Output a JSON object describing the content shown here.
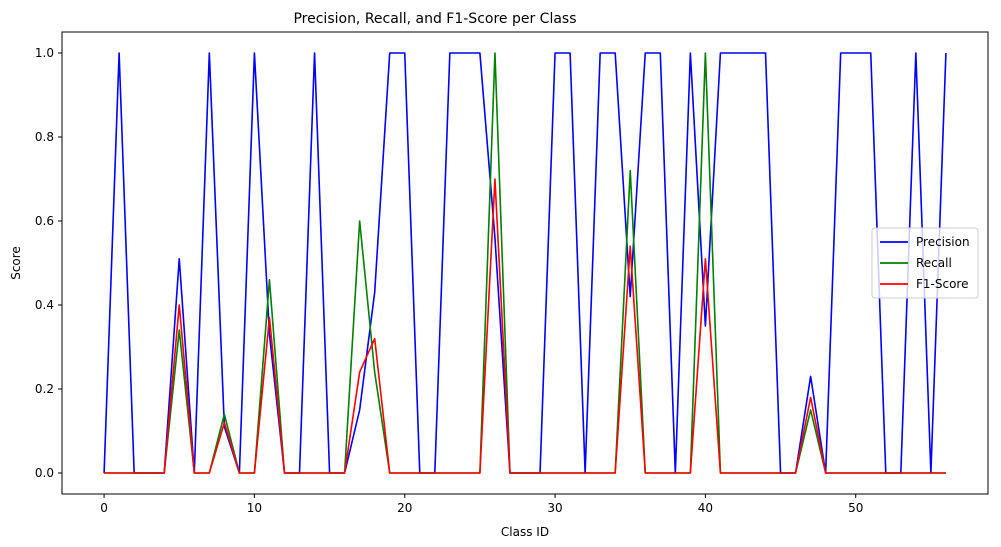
{
  "chart_data": {
    "type": "line",
    "title": "Precision, Recall, and F1-Score per Class",
    "xlabel": "Class ID",
    "ylabel": "Score",
    "xlim": [
      -2.8,
      58.8
    ],
    "ylim": [
      -0.05,
      1.05
    ],
    "xticks": [
      0,
      10,
      20,
      30,
      40,
      50
    ],
    "yticks": [
      0.0,
      0.2,
      0.4,
      0.6,
      0.8,
      1.0
    ],
    "ytick_labels": [
      "0.0",
      "0.2",
      "0.4",
      "0.6",
      "0.8",
      "1.0"
    ],
    "grid": false,
    "legend_position": "center-right",
    "x": [
      0,
      1,
      2,
      3,
      4,
      5,
      6,
      7,
      8,
      9,
      10,
      11,
      12,
      13,
      14,
      15,
      16,
      17,
      18,
      19,
      20,
      21,
      22,
      23,
      24,
      25,
      26,
      27,
      28,
      29,
      30,
      31,
      32,
      33,
      34,
      35,
      36,
      37,
      38,
      39,
      40,
      41,
      42,
      43,
      44,
      45,
      46,
      47,
      48,
      49,
      50,
      51,
      52,
      53,
      54,
      55,
      56
    ],
    "series": [
      {
        "name": "Precision",
        "color": "#0000ff",
        "values": [
          0,
          1,
          0,
          0,
          0,
          0.51,
          0,
          1,
          0.11,
          0,
          1,
          0.33,
          0,
          0,
          1,
          0,
          0,
          0.15,
          0.43,
          1,
          1,
          0,
          0,
          1,
          1,
          1,
          0.56,
          0,
          0,
          0,
          1,
          1,
          0,
          1,
          1,
          0.42,
          1,
          1,
          0,
          1,
          0.35,
          1,
          1,
          1,
          1,
          0,
          0,
          0.23,
          0,
          1,
          1,
          1,
          0,
          0,
          1,
          0,
          1
        ]
      },
      {
        "name": "Recall",
        "color": "#008000",
        "values": [
          0,
          0,
          0,
          0,
          0,
          0.34,
          0,
          0,
          0.14,
          0,
          0,
          0.46,
          0,
          0,
          0,
          0,
          0,
          0.6,
          0.24,
          0,
          0,
          0,
          0,
          0,
          0,
          0,
          1,
          0,
          0,
          0,
          0,
          0,
          0,
          0,
          0,
          0.72,
          0,
          0,
          0,
          0,
          1,
          0,
          0,
          0,
          0,
          0,
          0,
          0.15,
          0,
          0,
          0,
          0,
          0,
          0,
          0,
          0,
          0
        ]
      },
      {
        "name": "F1-Score",
        "color": "#ff0000",
        "values": [
          0,
          0,
          0,
          0,
          0,
          0.4,
          0,
          0,
          0.12,
          0,
          0,
          0.37,
          0,
          0,
          0,
          0,
          0,
          0.24,
          0.32,
          0,
          0,
          0,
          0,
          0,
          0,
          0,
          0.7,
          0,
          0,
          0,
          0,
          0,
          0,
          0,
          0,
          0.54,
          0,
          0,
          0,
          0,
          0.51,
          0,
          0,
          0,
          0,
          0,
          0,
          0.18,
          0,
          0,
          0,
          0,
          0,
          0,
          0,
          0,
          0
        ]
      }
    ]
  }
}
